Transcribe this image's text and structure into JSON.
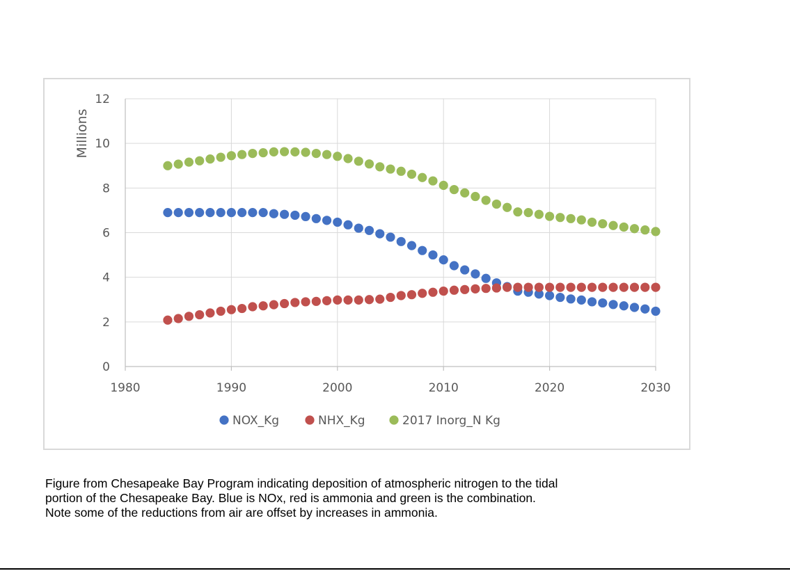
{
  "chart_data": {
    "type": "scatter",
    "title": "",
    "xlabel": "",
    "ylabel": "Millions",
    "xlim": [
      1980,
      2030
    ],
    "ylim": [
      0,
      12
    ],
    "x_ticks": [
      "1980",
      "1990",
      "2000",
      "2010",
      "2020",
      "2030"
    ],
    "y_ticks": [
      "0",
      "2",
      "4",
      "6",
      "8",
      "10",
      "12"
    ],
    "grid": true,
    "legend_position": "bottom",
    "x": [
      1984,
      1985,
      1986,
      1987,
      1988,
      1989,
      1990,
      1991,
      1992,
      1993,
      1994,
      1995,
      1996,
      1997,
      1998,
      1999,
      2000,
      2001,
      2002,
      2003,
      2004,
      2005,
      2006,
      2007,
      2008,
      2009,
      2010,
      2011,
      2012,
      2013,
      2014,
      2015,
      2016,
      2017,
      2018,
      2019,
      2020,
      2021,
      2022,
      2023,
      2024,
      2025,
      2026,
      2027,
      2028,
      2029,
      2030
    ],
    "series": [
      {
        "name": "NOX_Kg",
        "color": "#4472c4",
        "values": [
          6.9,
          6.9,
          6.9,
          6.9,
          6.9,
          6.9,
          6.9,
          6.9,
          6.9,
          6.9,
          6.85,
          6.82,
          6.78,
          6.72,
          6.63,
          6.55,
          6.47,
          6.35,
          6.2,
          6.1,
          5.95,
          5.8,
          5.6,
          5.42,
          5.2,
          5.0,
          4.78,
          4.52,
          4.33,
          4.15,
          3.95,
          3.75,
          3.58,
          3.38,
          3.33,
          3.25,
          3.18,
          3.1,
          3.03,
          2.98,
          2.9,
          2.85,
          2.78,
          2.72,
          2.65,
          2.58,
          2.48
        ]
      },
      {
        "name": "NHX_Kg",
        "color": "#c0504d",
        "values": [
          2.08,
          2.15,
          2.25,
          2.32,
          2.4,
          2.48,
          2.55,
          2.6,
          2.68,
          2.72,
          2.77,
          2.82,
          2.87,
          2.9,
          2.92,
          2.95,
          2.98,
          2.98,
          2.98,
          3.0,
          3.02,
          3.1,
          3.18,
          3.22,
          3.28,
          3.33,
          3.38,
          3.42,
          3.45,
          3.48,
          3.5,
          3.52,
          3.55,
          3.55,
          3.55,
          3.55,
          3.55,
          3.55,
          3.55,
          3.55,
          3.55,
          3.55,
          3.55,
          3.55,
          3.55,
          3.55,
          3.55
        ]
      },
      {
        "name": "2017 Inorg_N Kg",
        "color": "#9bbb59",
        "values": [
          9.0,
          9.07,
          9.16,
          9.22,
          9.3,
          9.38,
          9.45,
          9.5,
          9.55,
          9.58,
          9.62,
          9.63,
          9.62,
          9.6,
          9.55,
          9.5,
          9.42,
          9.32,
          9.2,
          9.08,
          8.95,
          8.85,
          8.75,
          8.62,
          8.47,
          8.32,
          8.12,
          7.93,
          7.78,
          7.62,
          7.45,
          7.28,
          7.13,
          6.93,
          6.9,
          6.82,
          6.73,
          6.68,
          6.63,
          6.57,
          6.47,
          6.4,
          6.32,
          6.25,
          6.18,
          6.12,
          6.05
        ]
      }
    ]
  },
  "caption": {
    "line1": "Figure from Chesapeake Bay Program indicating deposition of atmospheric nitrogen to the tidal",
    "line2": "portion of the Chesapeake Bay. Blue is NOx, red is ammonia and green is the combination.",
    "line3": "Note some of the reductions from air are offset by increases in ammonia."
  },
  "colors": {
    "grid": "#d9d9d9",
    "axis": "#bfbfbf",
    "text": "#595959"
  }
}
